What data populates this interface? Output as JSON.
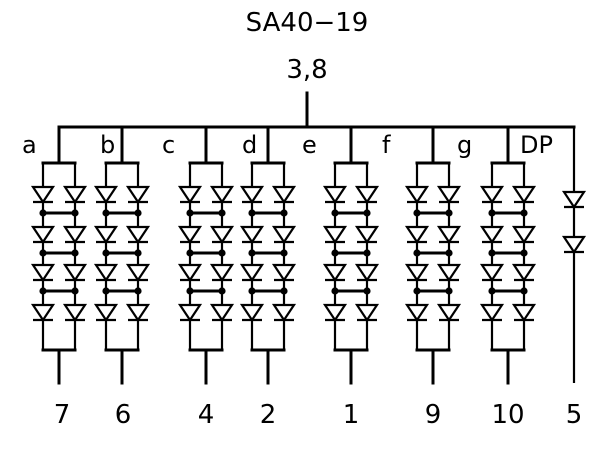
{
  "title": "SA40−19",
  "common_pin": "3,8",
  "segments": [
    {
      "label": "a",
      "pin": "7"
    },
    {
      "label": "b",
      "pin": "6"
    },
    {
      "label": "c",
      "pin": "4"
    },
    {
      "label": "d",
      "pin": "2"
    },
    {
      "label": "e",
      "pin": "1"
    },
    {
      "label": "f",
      "pin": "9"
    },
    {
      "label": "g",
      "pin": "10"
    },
    {
      "label": "DP",
      "pin": "5"
    }
  ]
}
